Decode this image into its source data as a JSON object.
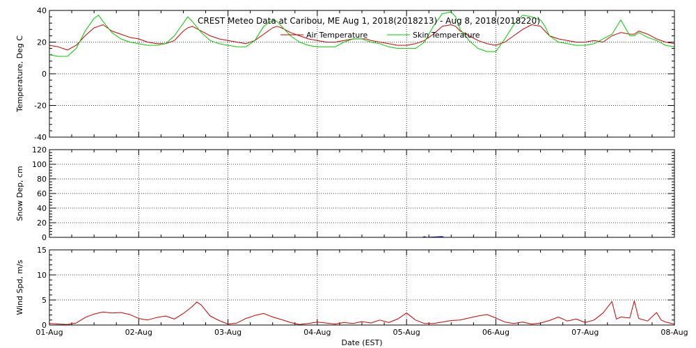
{
  "chart_data": [
    {
      "type": "line",
      "title": "CREST Meteo Data at Caribou, ME   Aug  1, 2018(2018213) - Aug  8, 2018(2018220)",
      "ylabel": "Temperature, Deg C",
      "ylim": [
        -40,
        40
      ],
      "yticks": [
        -40,
        -20,
        0,
        20,
        40
      ],
      "xlim": [
        0,
        7
      ],
      "legend_position": "top-right",
      "grid": true,
      "series": [
        {
          "name": "Air Temperature",
          "color": "#cc0000",
          "x": [
            0,
            0.1,
            0.2,
            0.3,
            0.4,
            0.5,
            0.55,
            0.6,
            0.7,
            0.8,
            0.9,
            1.0,
            1.1,
            1.2,
            1.3,
            1.4,
            1.5,
            1.55,
            1.6,
            1.7,
            1.8,
            1.9,
            2.0,
            2.1,
            2.2,
            2.3,
            2.4,
            2.5,
            2.55,
            2.6,
            2.7,
            2.8,
            2.9,
            3.0,
            3.1,
            3.2,
            3.3,
            3.4,
            3.5,
            3.55,
            3.6,
            3.7,
            3.8,
            3.9,
            4.0,
            4.1,
            4.2,
            4.3,
            4.4,
            4.5,
            4.55,
            4.6,
            4.7,
            4.8,
            4.9,
            5.0,
            5.1,
            5.2,
            5.3,
            5.4,
            5.5,
            5.55,
            5.6,
            5.7,
            5.8,
            5.9,
            6.0,
            6.1,
            6.2,
            6.3,
            6.4,
            6.5,
            6.55,
            6.6,
            6.7,
            6.8,
            6.9,
            7.0
          ],
          "y": [
            18,
            17,
            15,
            18,
            24,
            29,
            30,
            31,
            27,
            25,
            23,
            22,
            20,
            19,
            19,
            21,
            27,
            29,
            30,
            27,
            24,
            22,
            21,
            20,
            19,
            21,
            25,
            29,
            30,
            29,
            26,
            24,
            22,
            21,
            20,
            20,
            21,
            22,
            22,
            22,
            21,
            20,
            19,
            18,
            18,
            19,
            21,
            25,
            30,
            31,
            30,
            27,
            24,
            21,
            19,
            18,
            20,
            24,
            28,
            31,
            30,
            27,
            24,
            22,
            21,
            20,
            20,
            21,
            20,
            24,
            26,
            25,
            25,
            27,
            25,
            22,
            20,
            19
          ]
        },
        {
          "name": "Skin Temperature",
          "color": "#00cc00",
          "x": [
            0,
            0.1,
            0.2,
            0.3,
            0.4,
            0.5,
            0.55,
            0.6,
            0.7,
            0.8,
            0.9,
            1.0,
            1.1,
            1.2,
            1.3,
            1.4,
            1.5,
            1.55,
            1.6,
            1.7,
            1.8,
            1.9,
            2.0,
            2.1,
            2.2,
            2.3,
            2.4,
            2.5,
            2.55,
            2.6,
            2.7,
            2.8,
            2.9,
            3.0,
            3.1,
            3.2,
            3.3,
            3.4,
            3.5,
            3.55,
            3.6,
            3.7,
            3.8,
            3.9,
            4.0,
            4.1,
            4.2,
            4.3,
            4.4,
            4.5,
            4.55,
            4.6,
            4.7,
            4.8,
            4.9,
            5.0,
            5.1,
            5.2,
            5.3,
            5.4,
            5.5,
            5.55,
            5.6,
            5.7,
            5.8,
            5.9,
            6.0,
            6.1,
            6.2,
            6.3,
            6.4,
            6.5,
            6.55,
            6.6,
            6.7,
            6.8,
            6.9,
            7.0
          ],
          "y": [
            12,
            11,
            11,
            16,
            27,
            35,
            37,
            33,
            26,
            22,
            20,
            19,
            18,
            18,
            19,
            24,
            32,
            36,
            33,
            26,
            21,
            19,
            18,
            17,
            17,
            21,
            30,
            34,
            33,
            30,
            24,
            20,
            18,
            17,
            17,
            17,
            20,
            22,
            22,
            21,
            20,
            19,
            17,
            16,
            16,
            16,
            20,
            30,
            38,
            39,
            36,
            28,
            21,
            16,
            14,
            14,
            22,
            31,
            37,
            36,
            34,
            30,
            24,
            20,
            19,
            18,
            18,
            19,
            22,
            25,
            34,
            24,
            24,
            26,
            23,
            21,
            18,
            17
          ]
        }
      ]
    },
    {
      "type": "line",
      "ylabel": "Snow Dep, cm",
      "ylim": [
        0,
        120
      ],
      "yticks": [
        0,
        20,
        40,
        60,
        80,
        100,
        120
      ],
      "xlim": [
        0,
        7
      ],
      "grid": true,
      "series": [
        {
          "color": "#0000cc",
          "x": [
            4.18,
            4.2,
            4.22,
            4.4,
            4.42
          ],
          "y": [
            0,
            1,
            0,
            1,
            0
          ]
        }
      ]
    },
    {
      "type": "line",
      "ylabel": "Wind Spd, m/s",
      "xlabel": "Date (EST)",
      "ylim": [
        0,
        15
      ],
      "yticks": [
        0,
        5,
        10,
        15
      ],
      "xlim": [
        0,
        7
      ],
      "grid": true,
      "categories": [
        "01-Aug",
        "02-Aug",
        "03-Aug",
        "04-Aug",
        "05-Aug",
        "06-Aug",
        "07-Aug",
        "08-Aug"
      ],
      "series": [
        {
          "color": "#cc0000",
          "x": [
            0,
            0.1,
            0.2,
            0.3,
            0.4,
            0.5,
            0.6,
            0.7,
            0.8,
            0.9,
            1.0,
            1.1,
            1.2,
            1.3,
            1.4,
            1.5,
            1.6,
            1.65,
            1.7,
            1.8,
            1.9,
            2.0,
            2.1,
            2.2,
            2.3,
            2.4,
            2.5,
            2.6,
            2.7,
            2.8,
            2.9,
            3.0,
            3.1,
            3.2,
            3.3,
            3.4,
            3.5,
            3.6,
            3.7,
            3.8,
            3.9,
            4.0,
            4.1,
            4.2,
            4.3,
            4.4,
            4.5,
            4.6,
            4.7,
            4.8,
            4.9,
            5.0,
            5.1,
            5.2,
            5.3,
            5.4,
            5.5,
            5.6,
            5.7,
            5.8,
            5.9,
            6.0,
            6.1,
            6.2,
            6.3,
            6.35,
            6.4,
            6.5,
            6.55,
            6.6,
            6.7,
            6.8,
            6.85,
            6.9,
            7.0
          ],
          "y": [
            0.3,
            0.2,
            0.1,
            0.4,
            1.5,
            2.2,
            2.6,
            2.4,
            2.5,
            2.1,
            1.3,
            1.0,
            1.5,
            1.8,
            1.2,
            2.3,
            3.7,
            4.6,
            4.0,
            1.8,
            0.9,
            0.2,
            0.4,
            1.3,
            1.9,
            2.3,
            1.6,
            1.1,
            0.5,
            0.1,
            0.3,
            0.6,
            0.4,
            0.2,
            0.5,
            0.3,
            0.7,
            0.4,
            1.0,
            0.5,
            1.2,
            2.4,
            1.0,
            0.3,
            0.3,
            0.6,
            0.9,
            1.0,
            1.4,
            1.8,
            2.1,
            1.4,
            0.6,
            0.3,
            0.6,
            0.2,
            0.4,
            0.9,
            1.6,
            0.8,
            1.2,
            0.5,
            1.0,
            2.4,
            4.7,
            1.2,
            1.6,
            1.4,
            4.8,
            1.3,
            0.8,
            2.5,
            1.0,
            0.6,
            0.2
          ]
        }
      ]
    }
  ]
}
